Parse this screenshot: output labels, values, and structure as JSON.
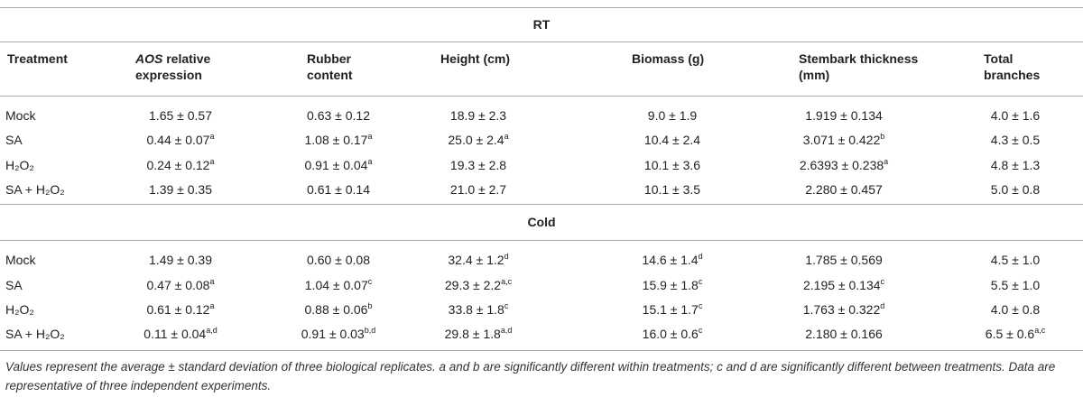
{
  "table": {
    "columns": [
      {
        "label": "Treatment"
      },
      {
        "em": "AOS",
        "label": "relative expression"
      },
      {
        "label": "Rubber content"
      },
      {
        "label": "Height (cm)"
      },
      {
        "label": "Biomass (g)"
      },
      {
        "label": "Stembark thickness (mm)"
      },
      {
        "label": "Total branches"
      }
    ],
    "sections": [
      {
        "title": "RT",
        "rows": [
          {
            "treatment": "Mock",
            "cells": [
              {
                "text": "1.65 ± 0.57"
              },
              {
                "text": "0.63 ± 0.12"
              },
              {
                "text": "18.9 ± 2.3"
              },
              {
                "text": "9.0 ± 1.9"
              },
              {
                "text": "1.919 ± 0.134"
              },
              {
                "text": "4.0 ± 1.6"
              }
            ]
          },
          {
            "treatment": "SA",
            "cells": [
              {
                "text": "0.44 ± 0.07",
                "sup": "a"
              },
              {
                "text": "1.08 ± 0.17",
                "sup": "a"
              },
              {
                "text": "25.0 ± 2.4",
                "sup": "a"
              },
              {
                "text": "10.4 ± 2.4"
              },
              {
                "text": "3.071 ± 0.422",
                "sup": "b"
              },
              {
                "text": "4.3 ± 0.5"
              }
            ]
          },
          {
            "treatment": "H₂O₂",
            "cells": [
              {
                "text": "0.24 ± 0.12",
                "sup": "a"
              },
              {
                "text": "0.91 ± 0.04",
                "sup": "a"
              },
              {
                "text": "19.3 ± 2.8"
              },
              {
                "text": "10.1 ± 3.6"
              },
              {
                "text": "2.6393 ± 0.238",
                "sup": "a"
              },
              {
                "text": "4.8 ± 1.3"
              }
            ]
          },
          {
            "treatment": "SA + H₂O₂",
            "cells": [
              {
                "text": "1.39 ± 0.35"
              },
              {
                "text": "0.61 ± 0.14"
              },
              {
                "text": "21.0 ± 2.7"
              },
              {
                "text": "10.1 ± 3.5"
              },
              {
                "text": "2.280 ± 0.457"
              },
              {
                "text": "5.0 ± 0.8"
              }
            ]
          }
        ]
      },
      {
        "title": "Cold",
        "rows": [
          {
            "treatment": "Mock",
            "cells": [
              {
                "text": "1.49 ± 0.39"
              },
              {
                "text": "0.60 ± 0.08"
              },
              {
                "text": "32.4 ± 1.2",
                "sup": "d"
              },
              {
                "text": "14.6 ± 1.4",
                "sup": "d"
              },
              {
                "text": "1.785 ± 0.569"
              },
              {
                "text": "4.5 ± 1.0"
              }
            ]
          },
          {
            "treatment": "SA",
            "cells": [
              {
                "text": "0.47 ± 0.08",
                "sup": "a"
              },
              {
                "text": "1.04 ± 0.07",
                "sup": "c"
              },
              {
                "text": "29.3 ± 2.2",
                "sup": "a,c"
              },
              {
                "text": "15.9 ± 1.8",
                "sup": "c"
              },
              {
                "text": "2.195 ± 0.134",
                "sup": "c"
              },
              {
                "text": "5.5 ± 1.0"
              }
            ]
          },
          {
            "treatment": "H₂O₂",
            "cells": [
              {
                "text": "0.61 ± 0.12",
                "sup": "a"
              },
              {
                "text": "0.88 ± 0.06",
                "sup": "b"
              },
              {
                "text": "33.8 ± 1.8",
                "sup": "c"
              },
              {
                "text": "15.1 ± 1.7",
                "sup": "c"
              },
              {
                "text": "1.763 ± 0.322",
                "sup": "d"
              },
              {
                "text": "4.0 ± 0.8"
              }
            ]
          },
          {
            "treatment": "SA + H₂O₂",
            "cells": [
              {
                "text": "0.11 ± 0.04",
                "sup": "a,d"
              },
              {
                "text": "0.91 ± 0.03",
                "sup": "b,d"
              },
              {
                "text": "29.8 ± 1.8",
                "sup": "a,d"
              },
              {
                "text": "16.0 ± 0.6",
                "sup": "c"
              },
              {
                "text": "2.180 ± 0.166"
              },
              {
                "text": "6.5 ± 0.6",
                "sup": "a,c"
              }
            ]
          }
        ]
      }
    ],
    "footnote": "Values represent the average ± standard deviation of three biological replicates. a and b are significantly different within treatments; c and d are significantly different between treatments. Data are representative of three independent experiments."
  }
}
